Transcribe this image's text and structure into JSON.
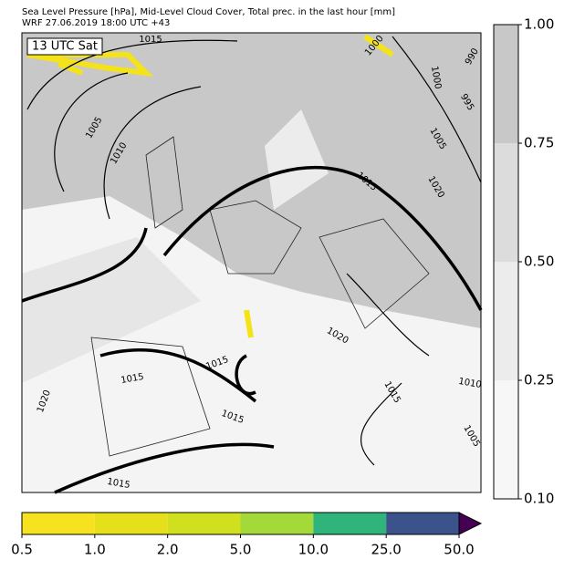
{
  "header": {
    "line1": "Sea Level Pressure [hPa], Mid-Level Cloud Cover, Total prec. in the last hour [mm]",
    "line2": "WRF 27.06.2019 18:00 UTC +43"
  },
  "time_label": "13 UTC Sat",
  "contour_labels": [
    "1015",
    "1005",
    "1010",
    "1000",
    "990",
    "1000",
    "995",
    "1005",
    "1020",
    "1015",
    "1015",
    "1015",
    "1015",
    "1020",
    "1020",
    "1015",
    "1010",
    "1005",
    "1015"
  ],
  "cloud_colorbar": {
    "ticks": [
      "0.10",
      "0.25",
      "0.50",
      "0.75",
      "1.00"
    ]
  },
  "precip_colorbar": {
    "ticks": [
      "0.5",
      "1.0",
      "2.0",
      "5.0",
      "10.0",
      "25.0",
      "50.0"
    ]
  }
}
